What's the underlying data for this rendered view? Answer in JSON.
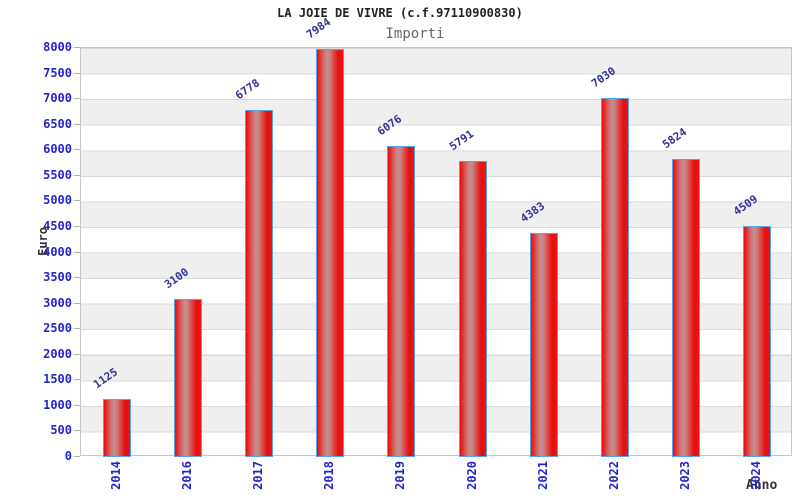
{
  "title": "LA JOIE DE VIVRE (c.f.97110900830)",
  "subtitle": "Importi",
  "chart_data": {
    "type": "bar",
    "categories": [
      "2014",
      "2016",
      "2017",
      "2018",
      "2019",
      "2020",
      "2021",
      "2022",
      "2023",
      "2024"
    ],
    "values": [
      1125,
      3100,
      6778,
      7984,
      6076,
      5791,
      4383,
      7030,
      5824,
      4509
    ],
    "title": "LA JOIE DE VIVRE (c.f.97110900830)",
    "subtitle": "Importi",
    "xlabel": "Anno",
    "ylabel": "Euro",
    "ylim": [
      0,
      8000
    ],
    "ytick_step": 500,
    "grid": "horizontal-bands-alternating",
    "legend": "none",
    "colors": {
      "bar_fill": "#e40f0f",
      "bar_highlight": "#c29191",
      "bar_border": "#5aa2e8",
      "axis_tick_label": "#2424cf",
      "value_label": "#32329b",
      "band_fill": "#efefef",
      "gridline": "#d9d9d9",
      "title": "#222222",
      "subtitle": "#666666",
      "axis_title": "#333333"
    }
  }
}
